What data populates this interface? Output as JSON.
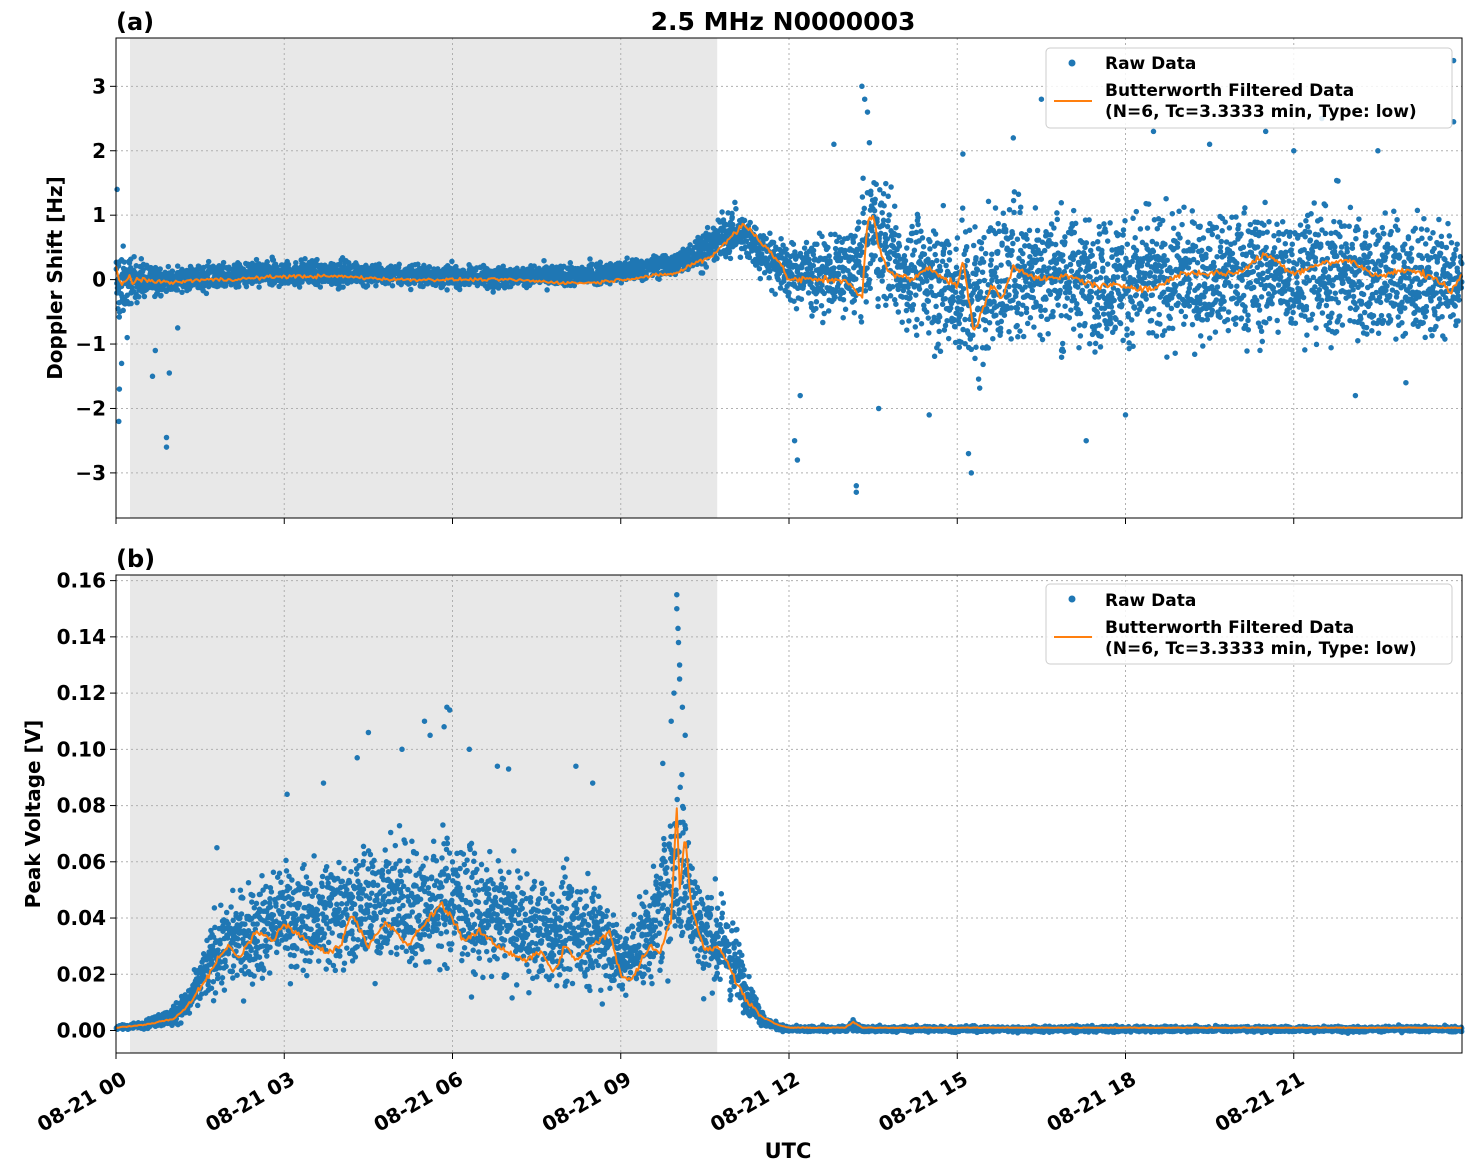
{
  "figure": {
    "title": "2.5 MHz N0000003",
    "xlabel": "UTC",
    "xticks": [
      "08-21 00",
      "08-21 03",
      "08-21 06",
      "08-21 09",
      "08-21 12",
      "08-21 15",
      "08-21 18",
      "08-21 21"
    ],
    "colors": {
      "raw": "#1f77b4",
      "filtered": "#ff7f0e",
      "night_shade": "#e8e8e8",
      "grid": "#b0b0b0"
    },
    "legend": {
      "raw": "Raw Data",
      "filtered_line1": "Butterworth Filtered Data",
      "filtered_line2": "(N=6, Tc=3.3333 min, Type: low)"
    }
  },
  "chart_data": [
    {
      "panel_label": "(a)",
      "type": "scatter",
      "ylabel": "Doppler Shift [Hz]",
      "x_unit": "hours UTC since 08-21 00",
      "xlim": [
        0,
        24
      ],
      "ylim": [
        -3.7,
        3.75
      ],
      "yticks": [
        3,
        2,
        1,
        0,
        -1,
        -2,
        -3
      ],
      "ytick_labels": [
        "3",
        "2",
        "1",
        "0",
        "−1",
        "−2",
        "−3"
      ],
      "shaded_interval_hours": [
        0.25,
        10.72
      ],
      "legend_position": "top-right",
      "grid": true,
      "series": [
        {
          "name": "Raw Data",
          "kind": "points",
          "envelope_hours": [
            0,
            0.3,
            0.6,
            1,
            2,
            3,
            4,
            5,
            6,
            7,
            8,
            9,
            10,
            10.5,
            11,
            11.3,
            11.8,
            12,
            12.5,
            13,
            13.3,
            13.5,
            14,
            14.5,
            15,
            15.3,
            15.6,
            16,
            16.5,
            17,
            18,
            19,
            20,
            21,
            22,
            23,
            24
          ],
          "upper": [
            1.0,
            0.5,
            0.35,
            0.3,
            0.35,
            0.4,
            0.4,
            0.35,
            0.3,
            0.3,
            0.3,
            0.4,
            0.55,
            0.9,
            1.3,
            1.2,
            0.9,
            0.8,
            1.0,
            1.1,
            1.6,
            2.5,
            1.5,
            1.4,
            1.5,
            1.7,
            1.6,
            1.8,
            1.7,
            1.6,
            1.5,
            1.5,
            1.6,
            1.6,
            1.7,
            1.4,
            1.2
          ],
          "lower": [
            -1.2,
            -0.5,
            -0.4,
            -0.3,
            -0.25,
            -0.2,
            -0.2,
            -0.2,
            -0.2,
            -0.2,
            -0.2,
            -0.15,
            -0.05,
            0.05,
            0.2,
            0.0,
            -0.4,
            -0.6,
            -0.8,
            -0.9,
            -1.1,
            -0.9,
            -1.2,
            -1.4,
            -1.8,
            -2.3,
            -1.7,
            -1.5,
            -1.4,
            -1.5,
            -1.5,
            -1.5,
            -1.4,
            -1.4,
            -1.5,
            -1.4,
            -1.3
          ],
          "outliers": [
            [
              0.02,
              1.4
            ],
            [
              0.05,
              -2.2
            ],
            [
              0.06,
              -1.7
            ],
            [
              0.1,
              -1.3
            ],
            [
              0.2,
              -0.9
            ],
            [
              0.9,
              -2.45
            ],
            [
              0.9,
              -2.6
            ],
            [
              0.95,
              -1.45
            ],
            [
              0.65,
              -1.5
            ],
            [
              0.7,
              -1.1
            ],
            [
              1.1,
              -0.75
            ],
            [
              12.1,
              -2.5
            ],
            [
              12.15,
              -2.8
            ],
            [
              12.2,
              -1.8
            ],
            [
              13.2,
              -3.2
            ],
            [
              13.2,
              -3.3
            ],
            [
              12.8,
              2.1
            ],
            [
              13.3,
              3.0
            ],
            [
              13.35,
              2.8
            ],
            [
              13.4,
              2.6
            ],
            [
              13.6,
              -2.0
            ],
            [
              14.5,
              -2.1
            ],
            [
              15.1,
              1.95
            ],
            [
              15.2,
              -2.7
            ],
            [
              15.25,
              -3.0
            ],
            [
              16.0,
              2.2
            ],
            [
              16.5,
              2.8
            ],
            [
              17.3,
              -2.5
            ],
            [
              18.0,
              -2.1
            ],
            [
              18.5,
              2.3
            ],
            [
              19.5,
              2.1
            ],
            [
              20.5,
              2.3
            ],
            [
              21.0,
              2.0
            ],
            [
              21.5,
              2.5
            ],
            [
              22.1,
              -1.8
            ],
            [
              22.5,
              2.0
            ],
            [
              23.0,
              -1.6
            ],
            [
              23.85,
              3.4
            ],
            [
              23.85,
              2.45
            ]
          ]
        },
        {
          "name": "Butterworth Filtered Data",
          "kind": "line",
          "x": [
            0,
            0.1,
            0.2,
            0.3,
            0.5,
            1,
            1.5,
            2,
            3,
            4,
            5,
            6,
            7,
            8,
            8.5,
            9,
            9.5,
            10,
            10.3,
            10.6,
            11,
            11.2,
            11.5,
            11.8,
            12,
            12.5,
            13,
            13.3,
            13.4,
            13.5,
            13.6,
            13.8,
            14.2,
            14.5,
            14.8,
            15,
            15.1,
            15.2,
            15.3,
            15.4,
            15.6,
            15.8,
            16,
            16.5,
            17,
            17.5,
            18,
            18.5,
            19,
            19.5,
            20,
            20.5,
            21,
            21.5,
            22,
            22.5,
            23,
            23.5,
            23.8,
            24
          ],
          "y": [
            0.2,
            -0.1,
            0.05,
            -0.05,
            0.0,
            -0.05,
            0.0,
            0.0,
            0.05,
            0.05,
            0.0,
            0.0,
            0.0,
            -0.05,
            -0.05,
            0.0,
            0.05,
            0.1,
            0.25,
            0.35,
            0.7,
            0.85,
            0.6,
            0.3,
            0.0,
            0.0,
            0.0,
            -0.3,
            0.9,
            1.0,
            0.5,
            0.1,
            0.0,
            0.2,
            0.0,
            -0.1,
            0.3,
            -0.3,
            -0.8,
            -0.6,
            -0.1,
            -0.3,
            0.2,
            0.0,
            0.05,
            -0.1,
            -0.1,
            -0.15,
            0.1,
            0.1,
            0.1,
            0.4,
            0.1,
            0.25,
            0.3,
            0.05,
            0.15,
            0.05,
            -0.2,
            0.1
          ]
        }
      ]
    },
    {
      "panel_label": "(b)",
      "type": "scatter",
      "ylabel": "Peak Voltage [V]",
      "x_unit": "hours UTC since 08-21 00",
      "xlim": [
        0,
        24
      ],
      "ylim": [
        -0.008,
        0.162
      ],
      "yticks": [
        0.0,
        0.02,
        0.04,
        0.06,
        0.08,
        0.1,
        0.12,
        0.14,
        0.16
      ],
      "ytick_labels": [
        "0.00",
        "0.02",
        "0.04",
        "0.06",
        "0.08",
        "0.10",
        "0.12",
        "0.14",
        "0.16"
      ],
      "shaded_interval_hours": [
        0.25,
        10.72
      ],
      "legend_position": "top-right",
      "grid": true,
      "series": [
        {
          "name": "Raw Data",
          "kind": "points",
          "envelope_hours": [
            0,
            0.5,
            1.0,
            1.3,
            1.5,
            1.8,
            2.0,
            2.5,
            3.0,
            3.5,
            4.0,
            4.5,
            5.0,
            5.5,
            6.0,
            6.5,
            7.0,
            7.5,
            8.0,
            8.5,
            8.8,
            9.0,
            9.3,
            9.6,
            9.9,
            10.1,
            10.3,
            10.5,
            10.8,
            11.1,
            11.3,
            11.6,
            12.0,
            13.0,
            13.15,
            13.3,
            14.0,
            18.0,
            22.0,
            24.0
          ],
          "upper": [
            0.002,
            0.004,
            0.01,
            0.018,
            0.03,
            0.05,
            0.055,
            0.06,
            0.07,
            0.065,
            0.075,
            0.075,
            0.08,
            0.075,
            0.085,
            0.07,
            0.07,
            0.06,
            0.065,
            0.065,
            0.055,
            0.04,
            0.05,
            0.065,
            0.1,
            0.11,
            0.075,
            0.06,
            0.055,
            0.04,
            0.02,
            0.005,
            0.002,
            0.002,
            0.005,
            0.002,
            0.002,
            0.002,
            0.002,
            0.002
          ],
          "lower": [
            0.0,
            0.0,
            0.0,
            0.002,
            0.004,
            0.006,
            0.008,
            0.01,
            0.012,
            0.012,
            0.013,
            0.012,
            0.012,
            0.012,
            0.012,
            0.01,
            0.008,
            0.008,
            0.008,
            0.006,
            0.006,
            0.008,
            0.008,
            0.01,
            0.01,
            0.01,
            0.01,
            0.008,
            0.006,
            0.004,
            0.002,
            0.0,
            -0.001,
            -0.001,
            -0.001,
            -0.001,
            -0.001,
            -0.001,
            -0.001,
            -0.001
          ],
          "outliers": [
            [
              10.0,
              0.155
            ],
            [
              10.0,
              0.15
            ],
            [
              10.02,
              0.143
            ],
            [
              10.03,
              0.138
            ],
            [
              10.05,
              0.13
            ],
            [
              10.05,
              0.125
            ],
            [
              9.95,
              0.12
            ],
            [
              9.9,
              0.11
            ],
            [
              10.1,
              0.115
            ],
            [
              10.15,
              0.105
            ],
            [
              5.9,
              0.115
            ],
            [
              5.95,
              0.114
            ],
            [
              5.85,
              0.108
            ],
            [
              5.5,
              0.11
            ],
            [
              5.6,
              0.105
            ],
            [
              4.5,
              0.106
            ],
            [
              6.3,
              0.1
            ],
            [
              4.3,
              0.097
            ],
            [
              3.7,
              0.088
            ],
            [
              3.05,
              0.084
            ],
            [
              1.8,
              0.065
            ],
            [
              7.0,
              0.093
            ],
            [
              6.8,
              0.094
            ],
            [
              8.2,
              0.094
            ],
            [
              8.5,
              0.088
            ],
            [
              9.75,
              0.095
            ],
            [
              5.1,
              0.1
            ]
          ]
        },
        {
          "name": "Butterworth Filtered Data",
          "kind": "line",
          "x": [
            0,
            0.5,
            1.0,
            1.2,
            1.4,
            1.6,
            1.8,
            2.0,
            2.2,
            2.5,
            2.8,
            3.0,
            3.2,
            3.5,
            3.8,
            4.0,
            4.2,
            4.5,
            4.8,
            5.0,
            5.2,
            5.5,
            5.8,
            6.0,
            6.2,
            6.5,
            6.8,
            7.0,
            7.3,
            7.6,
            7.8,
            8.0,
            8.2,
            8.5,
            8.8,
            9.0,
            9.2,
            9.5,
            9.7,
            9.9,
            10.0,
            10.05,
            10.15,
            10.25,
            10.5,
            10.7,
            10.9,
            11.0,
            11.2,
            11.5,
            11.8,
            12.0,
            13.0,
            13.15,
            13.3,
            14.0,
            24.0
          ],
          "y": [
            0.001,
            0.002,
            0.004,
            0.007,
            0.012,
            0.018,
            0.025,
            0.03,
            0.026,
            0.035,
            0.032,
            0.038,
            0.035,
            0.03,
            0.028,
            0.03,
            0.042,
            0.03,
            0.038,
            0.035,
            0.03,
            0.038,
            0.045,
            0.04,
            0.032,
            0.035,
            0.03,
            0.028,
            0.025,
            0.028,
            0.02,
            0.03,
            0.025,
            0.03,
            0.035,
            0.02,
            0.018,
            0.03,
            0.028,
            0.04,
            0.08,
            0.05,
            0.07,
            0.045,
            0.028,
            0.03,
            0.025,
            0.02,
            0.012,
            0.005,
            0.002,
            0.001,
            0.001,
            0.003,
            0.001,
            0.001,
            0.001
          ]
        }
      ]
    }
  ]
}
